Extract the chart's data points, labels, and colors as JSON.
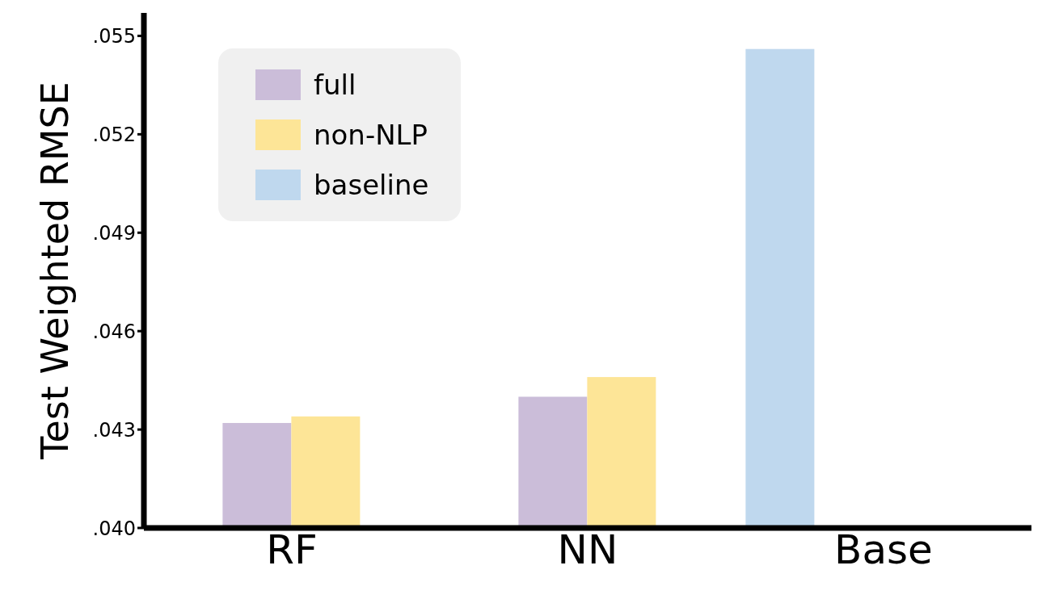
{
  "chart_data": {
    "type": "bar",
    "ylabel": "Test Weighted RMSE",
    "categories": [
      "RF",
      "NN",
      "Base"
    ],
    "series": [
      {
        "name": "full",
        "color": "#cbbdd9",
        "values": [
          0.0432,
          0.044,
          null
        ]
      },
      {
        "name": "non-NLP",
        "color": "#fde597",
        "values": [
          0.0434,
          0.0446,
          null
        ]
      },
      {
        "name": "baseline",
        "color": "#bfd8ee",
        "values": [
          null,
          null,
          0.0546
        ]
      }
    ],
    "ylim": [
      0.04,
      0.0557
    ],
    "yticks": [
      {
        "value": 0.04,
        "label": ".040"
      },
      {
        "value": 0.043,
        "label": ".043"
      },
      {
        "value": 0.046,
        "label": ".046"
      },
      {
        "value": 0.049,
        "label": ".049"
      },
      {
        "value": 0.052,
        "label": ".052"
      },
      {
        "value": 0.055,
        "label": ".055"
      }
    ],
    "grid": false,
    "legend": "top left"
  }
}
